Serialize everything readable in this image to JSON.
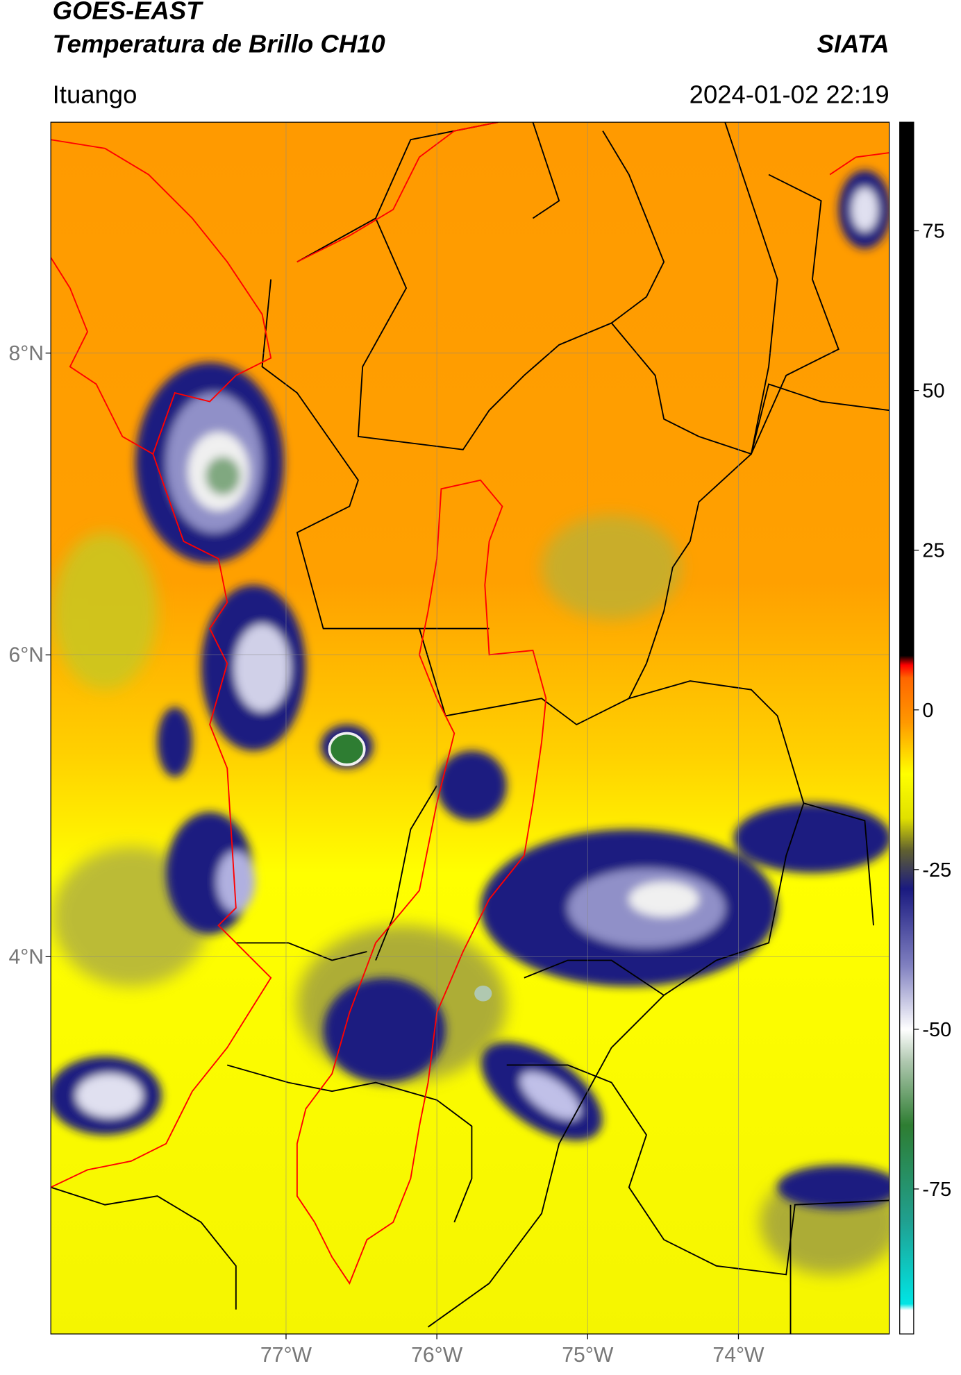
{
  "chart_data": {
    "type": "map",
    "title": "GOES-EAST",
    "subtitle": "Temperatura de Brillo CH10",
    "source": "SIATA",
    "location": "Ituango",
    "datetime": "2024-01-02 22:19",
    "xlim": [
      -78.56,
      -73.0
    ],
    "ylim": [
      1.5,
      9.53
    ],
    "xticks": [
      {
        "value": -77,
        "label": "77°W"
      },
      {
        "value": -76,
        "label": "76°W"
      },
      {
        "value": -75,
        "label": "75°W"
      },
      {
        "value": -74,
        "label": "74°W"
      }
    ],
    "yticks": [
      {
        "value": 8,
        "label": "8°N"
      },
      {
        "value": 6,
        "label": "6°N"
      },
      {
        "value": 4,
        "label": "4°N"
      }
    ],
    "grid": true,
    "colorbar": {
      "lim": [
        -97.7,
        92
      ],
      "ticks": [
        75,
        50,
        25,
        0,
        -25,
        -50,
        -75
      ],
      "colormap": [
        {
          "value": -97.7,
          "color": "#ffffff"
        },
        {
          "value": -94,
          "color": "#ffffff"
        },
        {
          "value": -93,
          "color": "#00e5e5"
        },
        {
          "value": -80,
          "color": "#20a090"
        },
        {
          "value": -65,
          "color": "#2e7d32"
        },
        {
          "value": -55,
          "color": "#b0c8b0"
        },
        {
          "value": -50,
          "color": "#ffffff"
        },
        {
          "value": -40,
          "color": "#8080c0"
        },
        {
          "value": -28,
          "color": "#1a1a80"
        },
        {
          "value": -22,
          "color": "#606030"
        },
        {
          "value": -17,
          "color": "#e0e000"
        },
        {
          "value": -10,
          "color": "#ffff00"
        },
        {
          "value": -2,
          "color": "#ff9900"
        },
        {
          "value": 5,
          "color": "#ff6600"
        },
        {
          "value": 7,
          "color": "#ff0000"
        },
        {
          "value": 8.5,
          "color": "#000000"
        },
        {
          "value": 92,
          "color": "#000000"
        }
      ]
    }
  }
}
